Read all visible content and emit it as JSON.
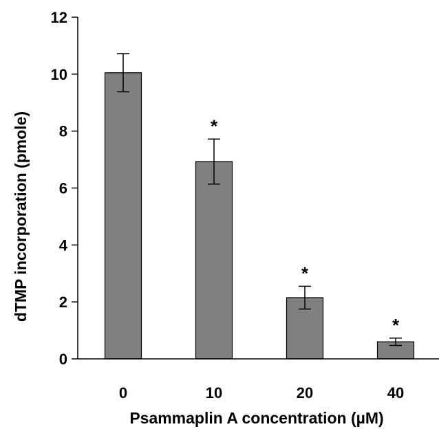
{
  "chart_data": {
    "type": "bar",
    "categories": [
      "0",
      "10",
      "20",
      "40"
    ],
    "values": [
      10.05,
      6.93,
      2.15,
      0.6
    ],
    "errors": [
      0.67,
      0.79,
      0.4,
      0.13
    ],
    "annotations": [
      "",
      "*",
      "*",
      "*"
    ],
    "xlabel": "Psammaplin A concentration (µM)",
    "ylabel": "dTMP incorporation (pmole)",
    "ylim": [
      0,
      12
    ],
    "yticks": [
      0,
      2,
      4,
      6,
      8,
      10,
      12
    ],
    "grid": false,
    "legend": "none",
    "colors": {
      "bar_fill": "#808080",
      "bar_stroke": "#000000",
      "axis": "#000000"
    }
  }
}
